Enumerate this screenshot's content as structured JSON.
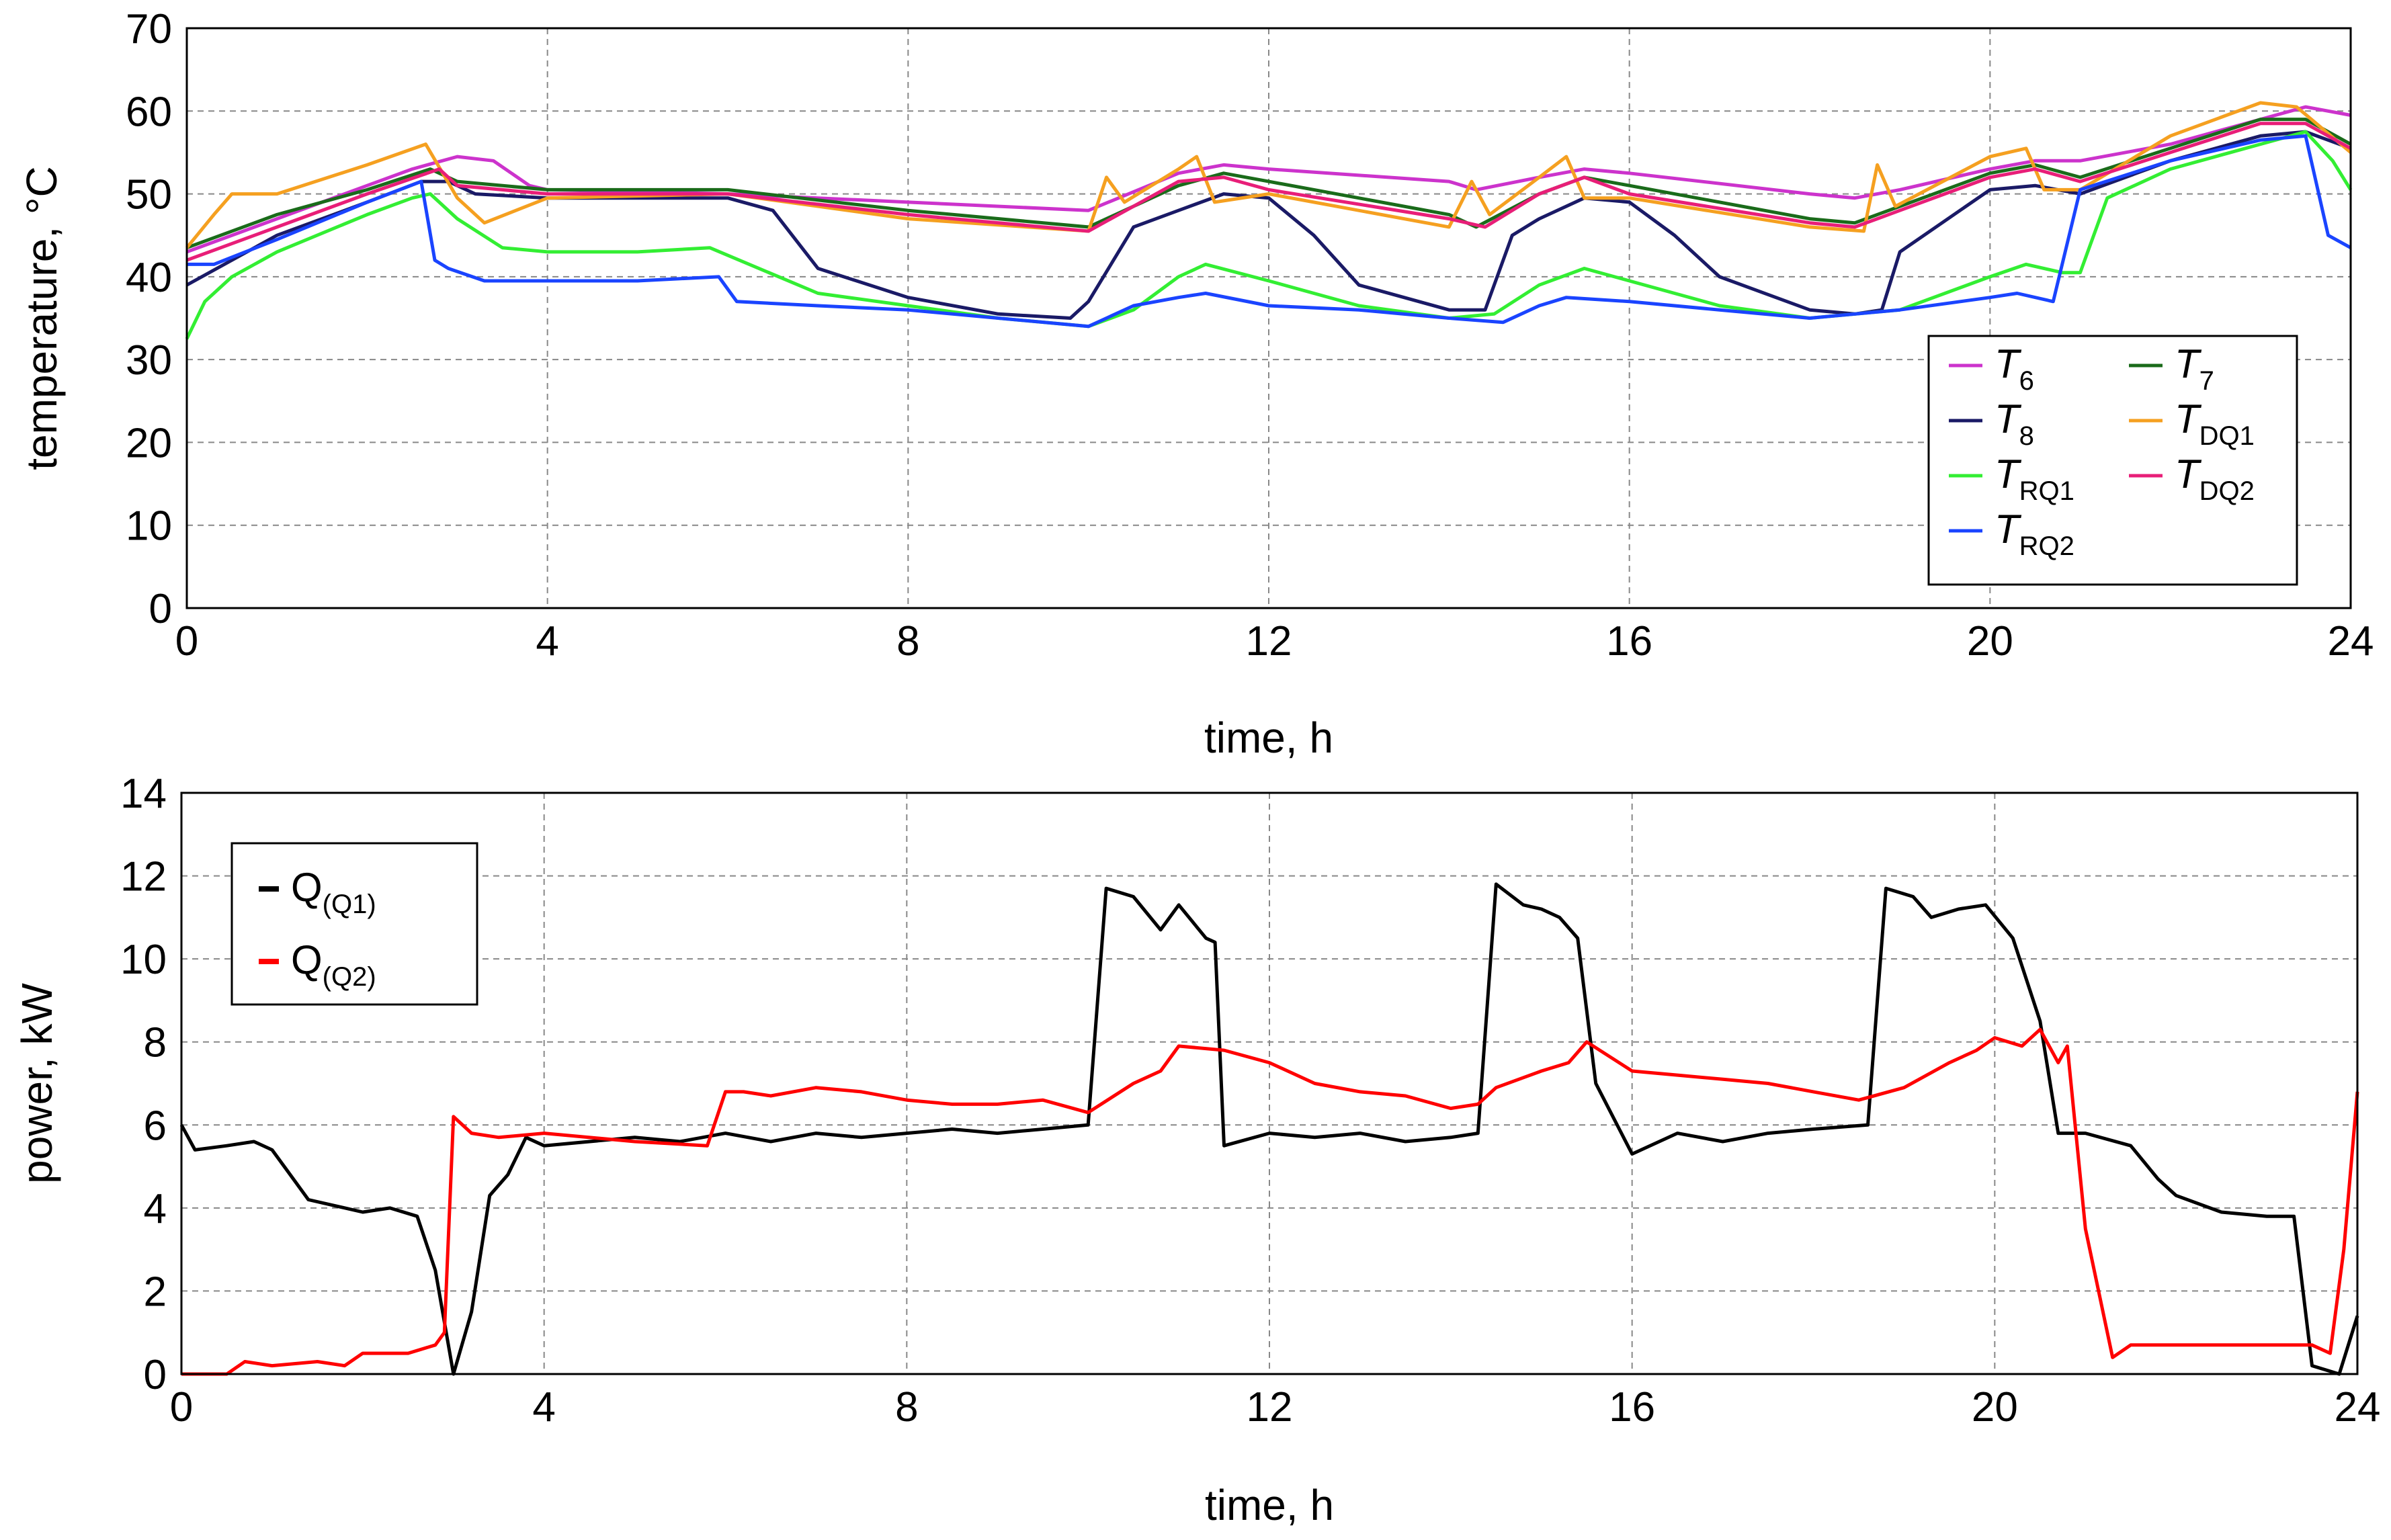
{
  "chart_data": [
    {
      "type": "line",
      "xlabel": "time, h",
      "ylabel": "temperature, °C",
      "xlim": [
        0,
        24
      ],
      "ylim": [
        0,
        70
      ],
      "xticks": [
        "0",
        "4",
        "8",
        "12",
        "16",
        "20",
        "24"
      ],
      "yticks": [
        "0",
        "10",
        "20",
        "30",
        "40",
        "50",
        "60",
        "70"
      ],
      "grid": true,
      "legend_position": "bottom-right",
      "series": [
        {
          "name": "T6",
          "main": "T",
          "sub": "6",
          "color": "#cc33cc",
          "x": [
            0,
            1,
            2,
            2.5,
            3,
            3.4,
            3.8,
            4,
            6,
            8,
            10,
            11,
            11.5,
            12,
            14,
            14.3,
            15,
            15.5,
            16,
            18,
            18.5,
            19,
            20,
            20.5,
            21,
            22,
            23,
            23.5,
            24
          ],
          "y": [
            43,
            47,
            51,
            53,
            54.5,
            54,
            51,
            50.5,
            50,
            49,
            48,
            52.5,
            53.5,
            53,
            51.5,
            50.5,
            52,
            53,
            52.5,
            50,
            49.5,
            50.5,
            53,
            54,
            54,
            56,
            59,
            60.5,
            59.5
          ]
        },
        {
          "name": "T7",
          "main": "T",
          "sub": "7",
          "color": "#1a6b1a",
          "x": [
            0,
            1,
            2,
            2.7,
            3,
            4,
            6,
            8,
            10,
            11,
            11.5,
            12,
            14,
            14.3,
            15,
            15.5,
            16,
            18,
            18.5,
            19,
            20,
            20.5,
            21,
            22,
            23,
            23.5,
            24
          ],
          "y": [
            43.5,
            47.5,
            50.5,
            53,
            51.5,
            50.5,
            50.5,
            48,
            46,
            51,
            52.5,
            51.5,
            47.5,
            46,
            50,
            52,
            51,
            47,
            46.5,
            48.5,
            52.5,
            53.5,
            52,
            55.5,
            59,
            59,
            56
          ]
        },
        {
          "name": "T8",
          "main": "T",
          "sub": "8",
          "color": "#1a1a66",
          "x": [
            0,
            0.5,
            1,
            2,
            2.6,
            2.9,
            3.2,
            4,
            6,
            6.5,
            7,
            8,
            9,
            9.8,
            10,
            10.5,
            11,
            11.5,
            12,
            12.5,
            13,
            14,
            14.4,
            14.7,
            15,
            15.5,
            16,
            16.5,
            17,
            18,
            18.5,
            18.8,
            19,
            20,
            20.5,
            21,
            22,
            23,
            23.5,
            24
          ],
          "y": [
            39,
            42,
            45,
            49,
            51.5,
            51.5,
            50,
            49.5,
            49.5,
            48,
            41,
            37.5,
            35.5,
            35,
            37,
            46,
            48,
            50,
            49.5,
            45,
            39,
            36,
            36,
            45,
            47,
            49.5,
            49,
            45,
            40,
            36,
            35.5,
            36,
            43,
            50.5,
            51,
            50,
            54,
            57,
            57.5,
            55.5
          ]
        },
        {
          "name": "TDQ1",
          "main": "T",
          "sub": "DQ1",
          "color": "#f5a020",
          "x": [
            0,
            0.3,
            0.5,
            1,
            2,
            2.65,
            3,
            3.3,
            4,
            6,
            8,
            10,
            10.2,
            10.4,
            11,
            11.2,
            11.4,
            12,
            14,
            14.25,
            14.45,
            15,
            15.3,
            15.5,
            16,
            18,
            18.6,
            18.75,
            18.95,
            20,
            20.4,
            20.6,
            21,
            22,
            23,
            23.4,
            24
          ],
          "y": [
            43.5,
            47.5,
            50,
            50,
            53.5,
            56,
            49.5,
            46.5,
            49.5,
            50,
            47,
            45.5,
            52,
            49,
            53,
            54.5,
            49,
            50,
            46,
            51.5,
            47.5,
            52,
            54.5,
            49.5,
            49.5,
            46,
            45.5,
            53.5,
            48.5,
            54.5,
            55.5,
            50.5,
            50.5,
            57,
            61,
            60.5,
            55
          ]
        },
        {
          "name": "TDQ2",
          "main": "T",
          "sub": "DQ2",
          "color": "#e81e78",
          "x": [
            0,
            1,
            2,
            2.8,
            3,
            4,
            6,
            8,
            10,
            11,
            11.5,
            12,
            14,
            14.4,
            15,
            15.5,
            16,
            18,
            18.5,
            19,
            20,
            20.5,
            21,
            22,
            23,
            23.5,
            24
          ],
          "y": [
            42,
            46,
            50,
            53,
            51,
            50,
            50,
            47.5,
            45.5,
            51.5,
            52,
            50.5,
            47,
            46,
            50,
            52,
            50,
            46.5,
            46,
            48,
            52,
            53,
            51.5,
            55,
            58.5,
            58.5,
            55.5
          ]
        },
        {
          "name": "TRQ1",
          "main": "T",
          "sub": "RQ1",
          "color": "#33ee33",
          "x": [
            0,
            0.2,
            0.5,
            1,
            2,
            2.5,
            2.7,
            3,
            3.5,
            4,
            5,
            5.8,
            7,
            8,
            9,
            10,
            10.5,
            11,
            11.3,
            12,
            13,
            14,
            14.5,
            15,
            15.5,
            16,
            17,
            18,
            19,
            20,
            20.4,
            20.8,
            21,
            21.3,
            22,
            23,
            23.5,
            23.8,
            24
          ],
          "y": [
            32.5,
            37,
            40,
            43,
            47.5,
            49.5,
            50,
            47,
            43.5,
            43,
            43,
            43.5,
            38,
            36.5,
            35,
            34,
            36,
            40,
            41.5,
            39.5,
            36.5,
            35,
            35.5,
            39,
            41,
            39.5,
            36.5,
            35,
            36,
            40,
            41.5,
            40.5,
            40.5,
            49.5,
            53,
            56,
            57.5,
            54,
            50.5
          ]
        },
        {
          "name": "TRQ2",
          "main": "T",
          "sub": "RQ2",
          "color": "#1a44ff",
          "x": [
            0,
            0.3,
            1,
            2,
            2.6,
            2.75,
            2.9,
            3.3,
            4,
            5,
            5.9,
            6.1,
            7,
            8,
            9,
            10,
            10.5,
            11,
            11.3,
            12,
            13,
            14,
            14.6,
            15,
            15.3,
            16,
            17,
            18,
            19,
            20,
            20.3,
            20.7,
            21,
            22,
            23,
            23.5,
            23.75,
            24
          ],
          "y": [
            41.5,
            41.5,
            44.5,
            49,
            51.5,
            42,
            41,
            39.5,
            39.5,
            39.5,
            40,
            37,
            36.5,
            36,
            35,
            34,
            36.5,
            37.5,
            38,
            36.5,
            36,
            35,
            34.5,
            36.5,
            37.5,
            37,
            36,
            35,
            36,
            37.5,
            38,
            37,
            50.5,
            54,
            56.5,
            57,
            45,
            43.5
          ]
        }
      ]
    },
    {
      "type": "line",
      "xlabel": "time, h",
      "ylabel": "power, kW",
      "xlim": [
        0,
        24
      ],
      "ylim": [
        0,
        14
      ],
      "xticks": [
        "0",
        "4",
        "8",
        "12",
        "16",
        "20",
        "24"
      ],
      "yticks": [
        "0",
        "2",
        "4",
        "6",
        "8",
        "10",
        "12",
        "14"
      ],
      "grid": true,
      "legend_position": "top-left",
      "series": [
        {
          "name": "Q(Q1)",
          "main": "Q",
          "sub": "(Q1)",
          "color": "#000000",
          "x": [
            0,
            0.15,
            0.5,
            0.8,
            1,
            1.2,
            1.4,
            2,
            2.3,
            2.6,
            2.8,
            3,
            3.2,
            3.4,
            3.6,
            3.8,
            4,
            5,
            5.5,
            6,
            6.5,
            7,
            7.5,
            8,
            8.5,
            9,
            9.5,
            10,
            10.2,
            10.5,
            10.8,
            11,
            11.3,
            11.4,
            11.5,
            12,
            12.5,
            13,
            13.5,
            14,
            14.3,
            14.5,
            14.8,
            15,
            15.2,
            15.4,
            15.6,
            16,
            16.5,
            17,
            17.5,
            18,
            18.6,
            18.8,
            19.1,
            19.3,
            19.6,
            19.9,
            20.2,
            20.5,
            20.7,
            21,
            21.5,
            21.8,
            22,
            22.5,
            23,
            23.3,
            23.5,
            23.8,
            24
          ],
          "y": [
            6,
            5.4,
            5.5,
            5.6,
            5.4,
            4.8,
            4.2,
            3.9,
            4,
            3.8,
            2.5,
            0,
            1.5,
            4.3,
            4.8,
            5.7,
            5.5,
            5.7,
            5.6,
            5.8,
            5.6,
            5.8,
            5.7,
            5.8,
            5.9,
            5.8,
            5.9,
            6,
            11.7,
            11.5,
            10.7,
            11.3,
            10.5,
            10.4,
            5.5,
            5.8,
            5.7,
            5.8,
            5.6,
            5.7,
            5.8,
            11.8,
            11.3,
            11.2,
            11,
            10.5,
            7,
            5.3,
            5.8,
            5.6,
            5.8,
            5.9,
            6,
            11.7,
            11.5,
            11,
            11.2,
            11.3,
            10.5,
            8.5,
            5.8,
            5.8,
            5.5,
            4.7,
            4.3,
            3.9,
            3.8,
            3.8,
            0.2,
            0,
            1.4
          ]
        },
        {
          "name": "Q(Q2)",
          "main": "Q",
          "sub": "(Q2)",
          "color": "#ff0000",
          "x": [
            0,
            0.5,
            0.7,
            1,
            1.5,
            1.8,
            2,
            2.5,
            2.8,
            2.9,
            3,
            3.2,
            3.5,
            4,
            5,
            5.8,
            6,
            6.2,
            6.5,
            7,
            7.5,
            8,
            8.5,
            9,
            9.5,
            10,
            10.5,
            10.8,
            11,
            11.5,
            12,
            12.5,
            13,
            13.5,
            14,
            14.3,
            14.5,
            15,
            15.3,
            15.5,
            16,
            16.5,
            17,
            17.5,
            18,
            18.5,
            19,
            19.5,
            19.8,
            20,
            20.3,
            20.5,
            20.7,
            20.8,
            21,
            21.3,
            21.5,
            22,
            22.5,
            23,
            23.3,
            23.5,
            23.7,
            23.85,
            24
          ],
          "y": [
            0,
            0,
            0.3,
            0.2,
            0.3,
            0.2,
            0.5,
            0.5,
            0.7,
            1,
            6.2,
            5.8,
            5.7,
            5.8,
            5.6,
            5.5,
            6.8,
            6.8,
            6.7,
            6.9,
            6.8,
            6.6,
            6.5,
            6.5,
            6.6,
            6.3,
            7,
            7.3,
            7.9,
            7.8,
            7.5,
            7,
            6.8,
            6.7,
            6.4,
            6.5,
            6.9,
            7.3,
            7.5,
            8,
            7.3,
            7.2,
            7.1,
            7,
            6.8,
            6.6,
            6.9,
            7.5,
            7.8,
            8.1,
            7.9,
            8.3,
            7.5,
            7.9,
            3.5,
            0.4,
            0.7,
            0.7,
            0.7,
            0.7,
            0.7,
            0.7,
            0.5,
            3,
            6.8
          ]
        }
      ]
    }
  ]
}
